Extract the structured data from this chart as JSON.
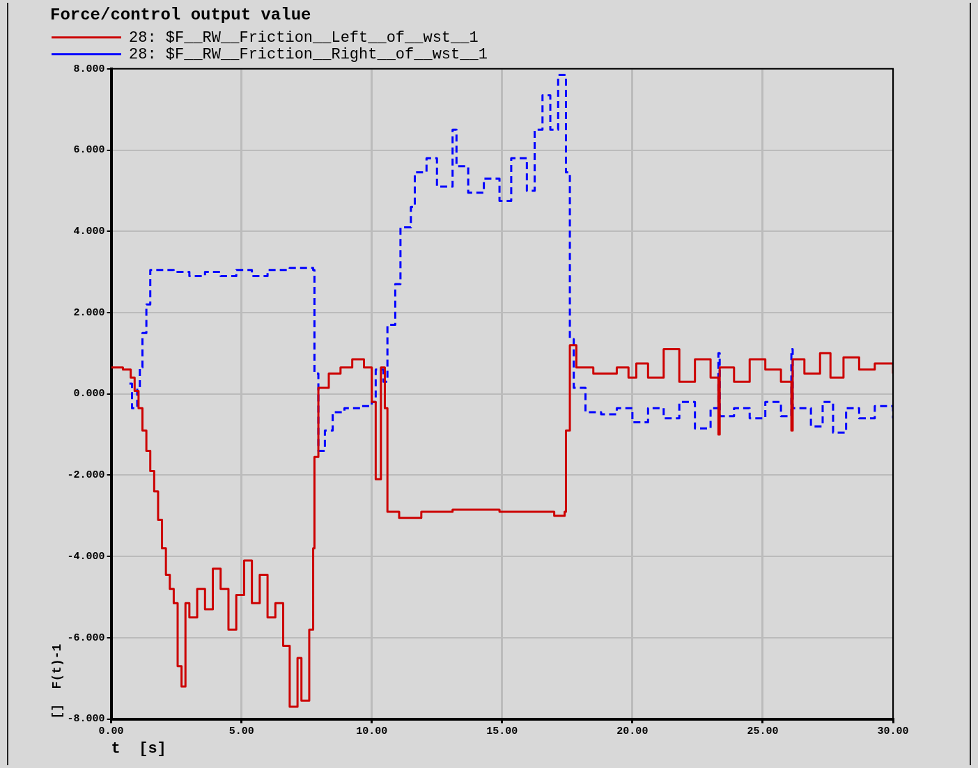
{
  "chart_data": {
    "type": "step",
    "title": "Force/control output value",
    "xlabel": "t  [s]",
    "ylabel": "[]  F(t)-1",
    "xlim": [
      0,
      30
    ],
    "xticks": [
      {
        "value": 0,
        "label": "0.00"
      },
      {
        "value": 5,
        "label": "5.00"
      },
      {
        "value": 10,
        "label": "10.00"
      },
      {
        "value": 15,
        "label": "15.00"
      },
      {
        "value": 20,
        "label": "20.00"
      },
      {
        "value": 25,
        "label": "25.00"
      },
      {
        "value": 30,
        "label": "30.00"
      }
    ],
    "ylim": [
      -8,
      8
    ],
    "yticks": [
      {
        "value": -8,
        "label": "-8.000"
      },
      {
        "value": -6,
        "label": "-6.000"
      },
      {
        "value": -4,
        "label": "-4.000"
      },
      {
        "value": -2,
        "label": "-2.000"
      },
      {
        "value": 0,
        "label": "0.000"
      },
      {
        "value": 2,
        "label": "2.000"
      },
      {
        "value": 4,
        "label": "4.000"
      },
      {
        "value": 6,
        "label": "6.000"
      },
      {
        "value": 8,
        "label": "8.000"
      }
    ],
    "grid": true,
    "legend": "top left",
    "marker": "none",
    "series": [
      {
        "name": "28: $F__RW__Friction__Left__of__wst__1",
        "color": "#cc0000",
        "line_style": "solid",
        "x": [
          0,
          0.45,
          0.75,
          0.9,
          1.05,
          1.2,
          1.35,
          1.5,
          1.65,
          1.8,
          1.95,
          2.1,
          2.25,
          2.4,
          2.55,
          2.7,
          2.85,
          3.0,
          3.3,
          3.6,
          3.9,
          4.2,
          4.5,
          4.8,
          5.1,
          5.4,
          5.7,
          6.0,
          6.3,
          6.6,
          6.85,
          7.15,
          7.3,
          7.6,
          7.75,
          7.8,
          7.95,
          8.35,
          8.8,
          9.25,
          9.7,
          10.0,
          10.15,
          10.35,
          10.5,
          10.6,
          11.05,
          11.9,
          13.1,
          14.9,
          16.1,
          17.0,
          17.4,
          17.45,
          17.6,
          17.85,
          18.5,
          19.4,
          19.85,
          20.15,
          20.6,
          21.2,
          21.8,
          22.4,
          23.0,
          23.3,
          23.35,
          23.9,
          24.5,
          25.1,
          25.7,
          26.1,
          26.15,
          26.6,
          27.2,
          27.6,
          28.1,
          28.7,
          29.3,
          30
        ],
        "values": [
          0.65,
          0.6,
          0.4,
          0.07,
          -0.35,
          -0.9,
          -1.4,
          -1.9,
          -2.4,
          -3.1,
          -3.8,
          -4.45,
          -4.8,
          -5.15,
          -6.7,
          -7.2,
          -5.15,
          -5.5,
          -4.8,
          -5.3,
          -4.3,
          -4.8,
          -5.8,
          -4.95,
          -4.1,
          -5.15,
          -4.45,
          -5.5,
          -5.15,
          -6.2,
          -7.7,
          -6.5,
          -7.55,
          -5.8,
          -3.8,
          -1.55,
          0.15,
          0.5,
          0.65,
          0.85,
          0.65,
          -0.2,
          -2.1,
          0.65,
          -0.35,
          -2.9,
          -3.05,
          -2.9,
          -2.85,
          -2.9,
          -2.9,
          -3.0,
          -2.9,
          -0.9,
          1.2,
          0.65,
          0.5,
          0.65,
          0.4,
          0.75,
          0.4,
          1.1,
          0.3,
          0.85,
          0.4,
          -1.0,
          0.65,
          0.3,
          0.85,
          0.6,
          0.3,
          -0.9,
          0.85,
          0.5,
          1.0,
          0.4,
          0.9,
          0.6,
          0.75,
          0.5
        ]
      },
      {
        "name": "28: $F__RW__Friction__Right__of__wst__1",
        "color": "#0000ff",
        "line_style": "dashed",
        "x": [
          0.7,
          0.8,
          1.0,
          1.1,
          1.2,
          1.35,
          1.5,
          1.8,
          2.4,
          3.0,
          3.6,
          4.2,
          4.8,
          5.4,
          6.0,
          6.85,
          7.75,
          7.8,
          7.95,
          8.2,
          8.5,
          8.95,
          9.55,
          10.0,
          10.15,
          10.45,
          10.6,
          10.9,
          11.1,
          11.5,
          11.65,
          12.1,
          12.5,
          13.1,
          13.25,
          13.7,
          14.3,
          14.9,
          15.35,
          15.95,
          16.25,
          16.55,
          16.85,
          17.15,
          17.45,
          17.6,
          17.75,
          18.2,
          18.8,
          19.4,
          20.0,
          20.6,
          21.2,
          21.8,
          22.4,
          23.0,
          23.3,
          23.35,
          23.9,
          24.5,
          25.1,
          25.7,
          26.1,
          26.15,
          26.85,
          27.3,
          27.7,
          28.2,
          28.7,
          29.3,
          30
        ],
        "values": [
          0.25,
          -0.35,
          0.15,
          0.65,
          1.5,
          2.2,
          3.05,
          3.05,
          3.0,
          2.9,
          3.0,
          2.9,
          3.05,
          2.9,
          3.05,
          3.1,
          3.05,
          0.5,
          -1.4,
          -0.9,
          -0.45,
          -0.35,
          -0.3,
          -0.2,
          0.6,
          0.3,
          1.7,
          2.7,
          4.1,
          4.6,
          5.45,
          5.8,
          5.1,
          6.5,
          5.6,
          4.95,
          5.3,
          4.75,
          5.8,
          5.0,
          6.5,
          7.35,
          6.5,
          7.85,
          5.45,
          1.35,
          0.15,
          -0.45,
          -0.5,
          -0.35,
          -0.7,
          -0.35,
          -0.6,
          -0.2,
          -0.85,
          -0.35,
          1.0,
          -0.55,
          -0.35,
          -0.6,
          -0.2,
          -0.55,
          1.1,
          -0.35,
          -0.8,
          -0.2,
          -0.95,
          -0.35,
          -0.6,
          -0.3,
          -0.6
        ]
      }
    ]
  }
}
